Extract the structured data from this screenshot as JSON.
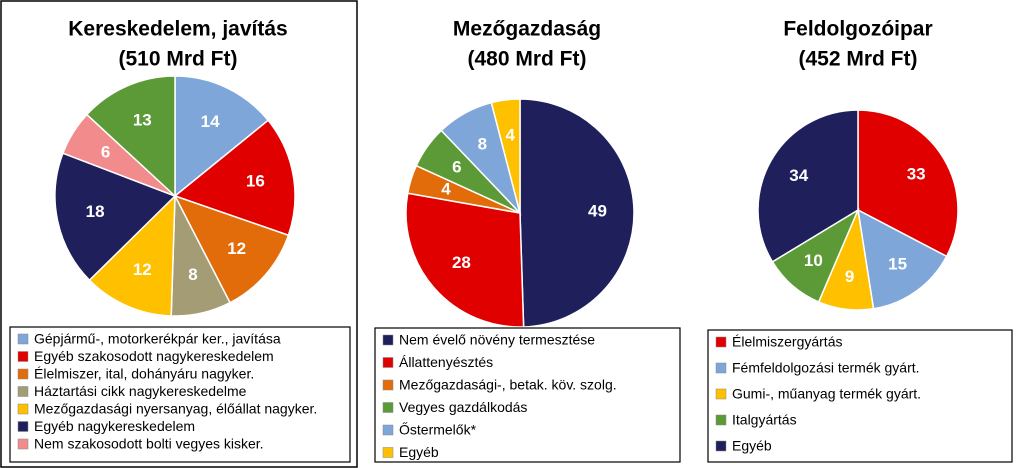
{
  "chart_data": [
    {
      "type": "pie",
      "title": "Kereskedelem, javítás",
      "subtitle": "(510 Mrd Ft)",
      "categories": [
        "Gépjármű-, motorkerékpár ker., javítása",
        "Egyéb szakosodott nagykereskedelem",
        "Élelmiszer, ital, dohányáru nagyker.",
        "Háztartási cikk nagykereskedelme",
        "Mezőgazdasági nyersanyag, élőállat nagyker.",
        "Egyéb nagykereskedelem",
        "Nem szakosodott bolti vegyes kisker.",
        null
      ],
      "values": [
        14,
        16,
        12,
        8,
        12,
        18,
        6,
        13
      ],
      "colors": [
        "#7ea6d9",
        "#e00000",
        "#e36c0a",
        "#a39c74",
        "#ffc000",
        "#1f1f5c",
        "#f28b8b",
        "#5b9a36"
      ]
    },
    {
      "type": "pie",
      "title": "Mezőgazdaság",
      "subtitle": "(480 Mrd Ft)",
      "categories": [
        "Nem évelő növény termesztése",
        "Állattenyésztés",
        "Mezőgazdasági-, betak. köv. szolg.",
        "Vegyes gazdálkodás",
        "Őstermelők*",
        "Egyéb"
      ],
      "values": [
        49,
        28,
        4,
        6,
        8,
        4
      ],
      "colors": [
        "#1f1f5c",
        "#e00000",
        "#e36c0a",
        "#5b9a36",
        "#7ea6d9",
        "#ffc000"
      ]
    },
    {
      "type": "pie",
      "title": "Feldolgozóipar",
      "subtitle": "(452 Mrd Ft)",
      "categories": [
        "Élelmiszergyártás",
        "Fémfeldolgozási termék gyárt.",
        "Gumi-, műanyag termék gyárt.",
        "Italgyártás",
        "Egyéb"
      ],
      "values": [
        33,
        15,
        9,
        10,
        34
      ],
      "colors": [
        "#e00000",
        "#7ea6d9",
        "#ffc000",
        "#5b9a36",
        "#1f1f5c"
      ]
    }
  ]
}
